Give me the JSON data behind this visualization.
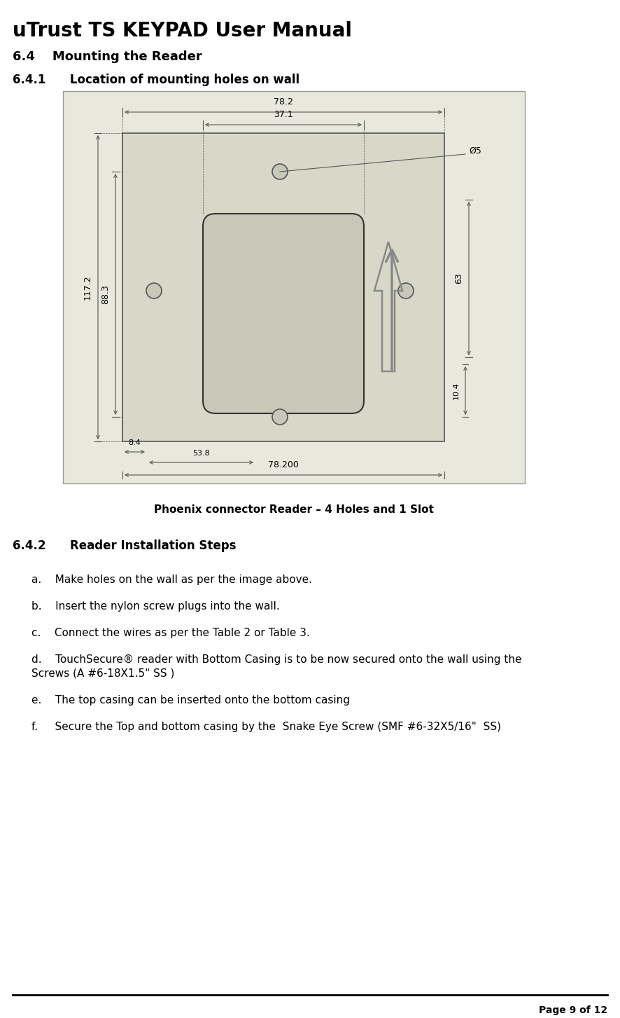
{
  "title": "uTrust TS KEYPAD User Manual",
  "section_64": "6.4    Mounting the Reader",
  "section_641": "6.4.1      Location of mounting holes on wall",
  "diagram_caption": "Phoenix connector Reader – 4 Holes and 1 Slot",
  "section_642": "6.4.2      Reader Installation Steps",
  "steps": [
    "a.    Make holes on the wall as per the image above.",
    "b.    Insert the nylon screw plugs into the wall.",
    "c.    Connect the wires as per the Table 2 or Table 3.",
    "d.    TouchSecure® reader with Bottom Casing is to be now secured onto the wall using the\n        Screws (A #6-18X1.5\" SS )",
    "e.    The top casing can be inserted onto the bottom casing",
    "f.     Secure the Top and bottom casing by the  Snake Eye Screw (SMF #6-32X5/16\"  SS)"
  ],
  "page_footer": "Page 9 of 12",
  "bg_color": "#ffffff",
  "diagram_bg": "#e8e8dc",
  "line_color": "#555555",
  "dim_color": "#555555"
}
